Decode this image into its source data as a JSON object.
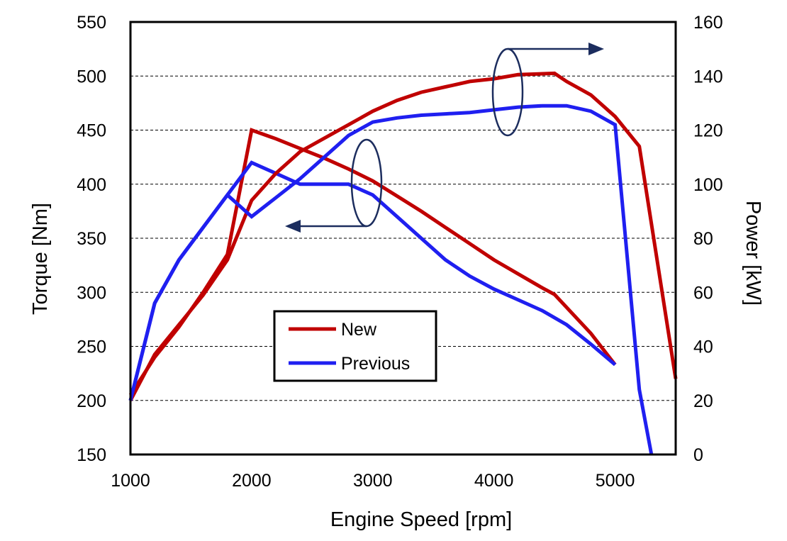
{
  "chart_data": {
    "type": "line",
    "xlabel": "Engine Speed  [rpm]",
    "ylabel_left": "Torque  [Nm]",
    "ylabel_right": "Power  [kW]",
    "xlim": [
      1000,
      5500
    ],
    "ylim_left": [
      150,
      550
    ],
    "ylim_right": [
      0,
      160
    ],
    "x_ticks": [
      1000,
      2000,
      3000,
      4000,
      5000
    ],
    "y_ticks_left": [
      150,
      200,
      250,
      300,
      350,
      400,
      450,
      500,
      550
    ],
    "y_ticks_right": [
      0,
      20,
      40,
      60,
      80,
      100,
      120,
      140,
      160
    ],
    "grid": "horizontal dashed",
    "legend": {
      "placement": "center-left",
      "entries": [
        {
          "label": "New",
          "color": "#C00000"
        },
        {
          "label": "Previous",
          "color": "#1F1FF0"
        }
      ]
    },
    "series": [
      {
        "name": "New",
        "quantity": "torque",
        "axis": "left",
        "color": "#C00000",
        "x": [
          1000,
          1200,
          1400,
          1600,
          1800,
          2000,
          2200,
          2400,
          2600,
          2800,
          3000,
          3200,
          3400,
          3600,
          3800,
          4000,
          4200,
          4400,
          4500,
          4800,
          5000
        ],
        "y": [
          205,
          240,
          268,
          300,
          335,
          450,
          442,
          433,
          424,
          414,
          403,
          389,
          375,
          360,
          345,
          330,
          317,
          304,
          298,
          262,
          233
        ]
      },
      {
        "name": "Previous",
        "quantity": "torque",
        "axis": "left",
        "color": "#1F1FF0",
        "x": [
          1000,
          1200,
          1400,
          1600,
          1800,
          2000,
          2200,
          2400,
          2600,
          2800,
          3000,
          3200,
          3400,
          3600,
          3800,
          4000,
          4200,
          4400,
          4600,
          4800,
          5000
        ],
        "y": [
          200,
          290,
          330,
          360,
          390,
          420,
          410,
          400,
          400,
          400,
          390,
          370,
          350,
          330,
          315,
          303,
          293,
          283,
          270,
          252,
          233
        ]
      },
      {
        "name": "New",
        "quantity": "power",
        "axis": "right",
        "color": "#C00000",
        "x": [
          1000,
          1200,
          1400,
          1600,
          1800,
          2000,
          2200,
          2400,
          2600,
          2800,
          3000,
          3200,
          3400,
          3600,
          3800,
          4000,
          4200,
          4500,
          4600,
          4800,
          5000,
          5200,
          5500
        ],
        "y": [
          20,
          37,
          48,
          59,
          72,
          94,
          104,
          112,
          117,
          122,
          127,
          131,
          134,
          136,
          138,
          139,
          140.5,
          141,
          138,
          133,
          125,
          114,
          28
        ]
      },
      {
        "name": "Previous",
        "quantity": "power",
        "axis": "right",
        "color": "#1F1FF0",
        "x": [
          1000,
          1200,
          1400,
          1600,
          1800,
          2000,
          2200,
          2400,
          2600,
          2800,
          3000,
          3200,
          3400,
          3600,
          3800,
          4000,
          4200,
          4400,
          4600,
          4800,
          5000,
          5200,
          5300
        ],
        "y": [
          20,
          56,
          72,
          84,
          96,
          88,
          95,
          102,
          110,
          118,
          123,
          124.5,
          125.5,
          126,
          126.5,
          127.5,
          128.5,
          129,
          129,
          127,
          122,
          24,
          0
        ]
      }
    ],
    "annotations": [
      {
        "kind": "axis-pointer-arrow",
        "points_to": "left",
        "applies_to": "torque curves"
      },
      {
        "kind": "axis-pointer-arrow",
        "points_to": "right",
        "applies_to": "power curves"
      }
    ]
  }
}
